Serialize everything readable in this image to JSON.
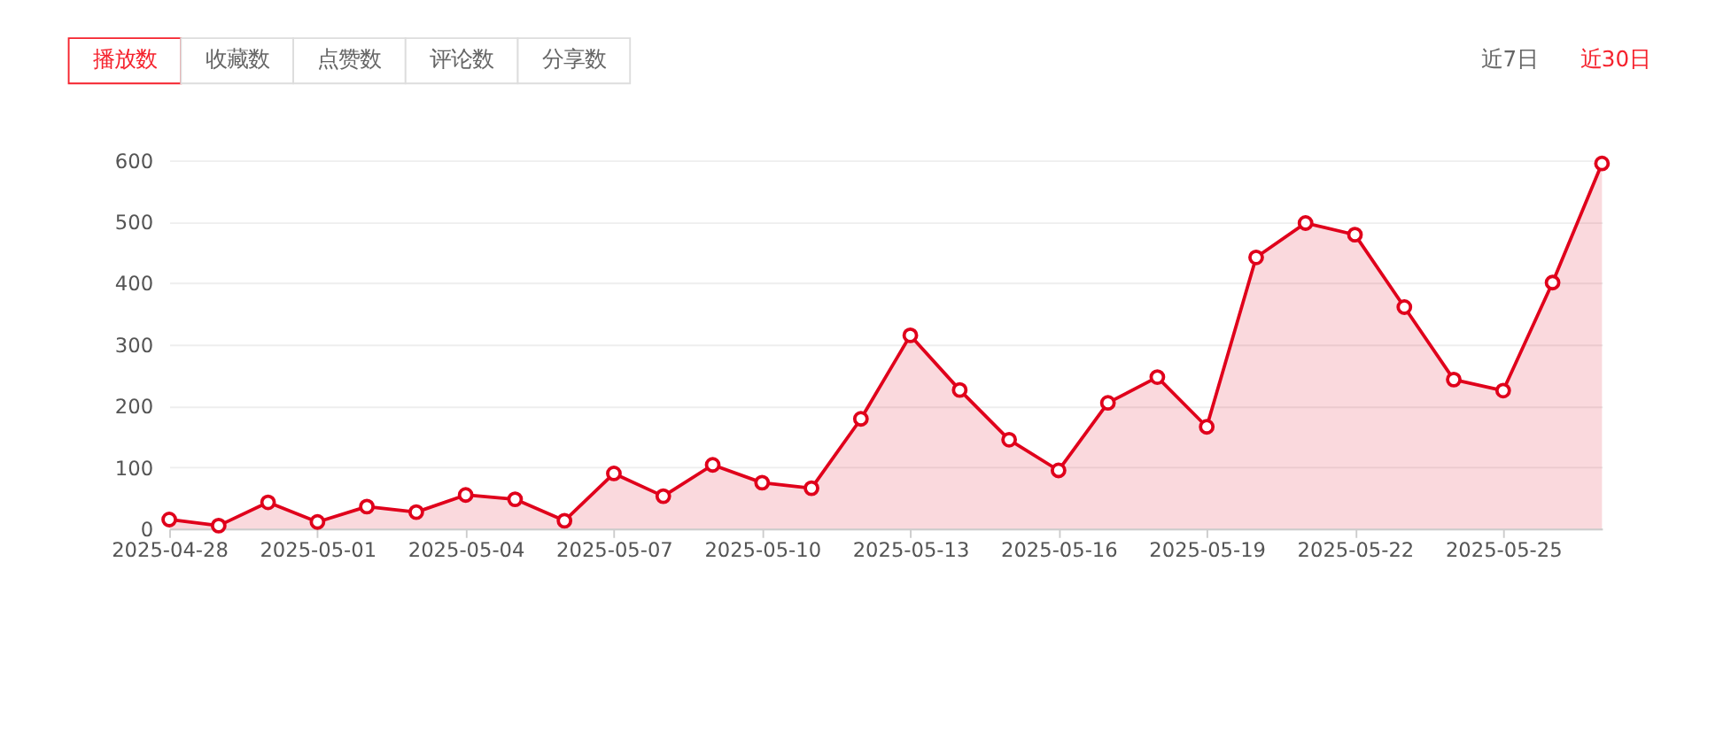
{
  "chart_data": {
    "type": "area",
    "x": [
      "2025-04-28",
      "2025-04-29",
      "2025-04-30",
      "2025-05-01",
      "2025-05-02",
      "2025-05-03",
      "2025-05-04",
      "2025-05-05",
      "2025-05-06",
      "2025-05-07",
      "2025-05-08",
      "2025-05-09",
      "2025-05-10",
      "2025-05-11",
      "2025-05-12",
      "2025-05-13",
      "2025-05-14",
      "2025-05-15",
      "2025-05-16",
      "2025-05-17",
      "2025-05-18",
      "2025-05-19",
      "2025-05-20",
      "2025-05-21",
      "2025-05-22",
      "2025-05-23",
      "2025-05-24",
      "2025-05-25",
      "2025-05-26",
      "2025-05-27"
    ],
    "series": [
      {
        "color": "#e0001b",
        "values": [
          15,
          5,
          43,
          11,
          36,
          27,
          55,
          48,
          13,
          90,
          53,
          104,
          75,
          66,
          179,
          315,
          226,
          145,
          95,
          205,
          247,
          166,
          442,
          498,
          479,
          361,
          243,
          225,
          401,
          595
        ]
      }
    ],
    "xlim": [
      "2025-04-28",
      "2025-05-27"
    ],
    "xticks": [
      "2025-04-28",
      "2025-05-01",
      "2025-05-04",
      "2025-05-07",
      "2025-05-10",
      "2025-05-13",
      "2025-05-16",
      "2025-05-19",
      "2025-05-22",
      "2025-05-25"
    ],
    "ylim": [
      0,
      600
    ],
    "yticks": [
      0,
      100,
      200,
      300,
      400,
      500,
      600
    ],
    "grid": "y",
    "marker": "circle",
    "line_style": "solid",
    "annotations": [
      "播放数",
      "收藏数",
      "点赞数",
      "评论数",
      "分享数",
      "近7日",
      "近30日"
    ]
  }
}
